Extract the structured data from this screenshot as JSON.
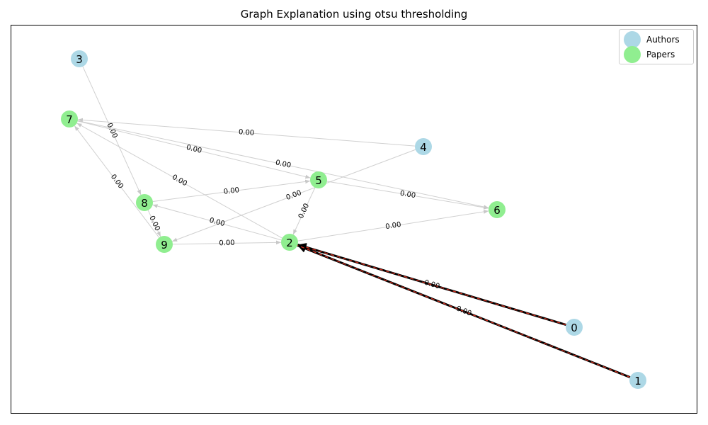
{
  "title": "Graph Explanation using otsu thresholding",
  "legend": [
    {
      "label": "Authors",
      "color": "#add8e6"
    },
    {
      "label": "Papers",
      "color": "#90ee90"
    }
  ],
  "nodes": [
    {
      "id": "0",
      "type": "author"
    },
    {
      "id": "1",
      "type": "author"
    },
    {
      "id": "2",
      "type": "paper"
    },
    {
      "id": "3",
      "type": "author"
    },
    {
      "id": "4",
      "type": "author"
    },
    {
      "id": "5",
      "type": "paper"
    },
    {
      "id": "6",
      "type": "paper"
    },
    {
      "id": "7",
      "type": "paper"
    },
    {
      "id": "8",
      "type": "paper"
    },
    {
      "id": "9",
      "type": "paper"
    }
  ],
  "edges": [
    {
      "from": "0",
      "to": "2",
      "label": "0.00",
      "highlighted": true
    },
    {
      "from": "1",
      "to": "2",
      "label": "0.00",
      "highlighted": true
    },
    {
      "from": "3",
      "to": "8",
      "label": "0.00",
      "highlighted": false
    },
    {
      "from": "4",
      "to": "7",
      "label": "0.00",
      "highlighted": false
    },
    {
      "from": "4",
      "to": "9",
      "label": "0.00",
      "highlighted": false
    },
    {
      "from": "7",
      "to": "5",
      "label": "0.00",
      "highlighted": false
    },
    {
      "from": "7",
      "to": "6",
      "label": "0.00",
      "highlighted": false
    },
    {
      "from": "2",
      "to": "7",
      "label": "0.00",
      "highlighted": false
    },
    {
      "from": "9",
      "to": "7",
      "label": "0.00",
      "highlighted": false
    },
    {
      "from": "8",
      "to": "5",
      "label": "0.00",
      "highlighted": false
    },
    {
      "from": "2",
      "to": "8",
      "label": "0.00",
      "highlighted": false
    },
    {
      "from": "5",
      "to": "6",
      "label": "0.00",
      "highlighted": false
    },
    {
      "from": "5",
      "to": "2",
      "label": "0.00",
      "highlighted": false
    },
    {
      "from": "2",
      "to": "6",
      "label": "0.00",
      "highlighted": false
    },
    {
      "from": "9",
      "to": "2",
      "label": "0.00",
      "highlighted": false
    },
    {
      "from": "8",
      "to": "9",
      "label": "0.00",
      "highlighted": false
    }
  ],
  "colors": {
    "author": "#add8e6",
    "paper": "#90ee90",
    "edge": "#c8c8c8",
    "highlight_edge": "#000000",
    "highlight_dash": "#e0301e"
  }
}
